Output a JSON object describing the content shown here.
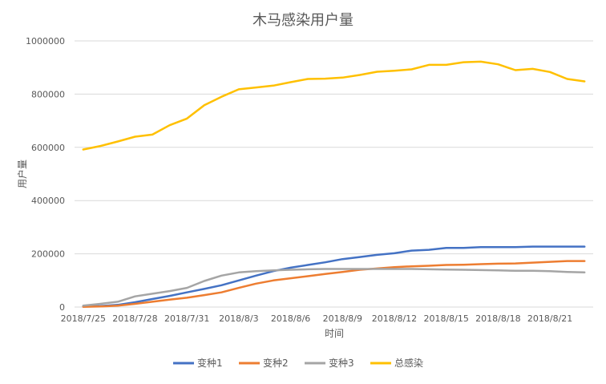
{
  "chart_data": {
    "type": "line",
    "title": "木马感染用户量",
    "xlabel": "时间",
    "ylabel": "用户量",
    "ylim": [
      0,
      1000000
    ],
    "yticks": [
      "0",
      "200000",
      "400000",
      "600000",
      "800000",
      "1000000"
    ],
    "y_tick_values": [
      0,
      200000,
      400000,
      600000,
      800000,
      1000000
    ],
    "x": [
      "2018/7/25",
      "2018/7/26",
      "2018/7/27",
      "2018/7/28",
      "2018/7/29",
      "2018/7/30",
      "2018/7/31",
      "2018/8/1",
      "2018/8/2",
      "2018/8/3",
      "2018/8/4",
      "2018/8/5",
      "2018/8/6",
      "2018/8/7",
      "2018/8/8",
      "2018/8/9",
      "2018/8/10",
      "2018/8/11",
      "2018/8/12",
      "2018/8/13",
      "2018/8/14",
      "2018/8/15",
      "2018/8/16",
      "2018/8/17",
      "2018/8/18",
      "2018/8/19",
      "2018/8/20",
      "2018/8/21",
      "2018/8/22",
      "2018/8/23"
    ],
    "xtick_labels": [
      "2018/7/25",
      "2018/7/28",
      "2018/7/31",
      "2018/8/3",
      "2018/8/6",
      "2018/8/9",
      "2018/8/12",
      "2018/8/15",
      "2018/8/18",
      "2018/8/21"
    ],
    "grid": true,
    "legend_position": "bottom",
    "series": [
      {
        "name": "变种1",
        "color": "#4472C4",
        "values": [
          2000,
          4000,
          8000,
          18000,
          30000,
          42000,
          55000,
          68000,
          82000,
          100000,
          118000,
          135000,
          148000,
          158000,
          168000,
          180000,
          188000,
          196000,
          202000,
          212000,
          215000,
          222000,
          222000,
          225000,
          225000,
          225000,
          227000,
          227000,
          227000,
          227000
        ]
      },
      {
        "name": "变种2",
        "color": "#ED7D31",
        "values": [
          1000,
          2000,
          5000,
          12000,
          20000,
          28000,
          35000,
          45000,
          55000,
          72000,
          88000,
          100000,
          108000,
          116000,
          124000,
          132000,
          140000,
          145000,
          150000,
          153000,
          155000,
          158000,
          159000,
          161000,
          163000,
          164000,
          167000,
          170000,
          173000,
          173000
        ]
      },
      {
        "name": "变种3",
        "color": "#A5A5A5",
        "values": [
          5000,
          12000,
          20000,
          40000,
          50000,
          60000,
          72000,
          98000,
          118000,
          130000,
          135000,
          138000,
          140000,
          142000,
          143000,
          143000,
          143000,
          143000,
          143000,
          143000,
          142000,
          141000,
          140000,
          139000,
          138000,
          136000,
          136000,
          135000,
          132000,
          130000
        ]
      },
      {
        "name": "总感染",
        "color": "#FFC000",
        "values": [
          592000,
          605000,
          622000,
          640000,
          648000,
          683000,
          708000,
          758000,
          790000,
          818000,
          825000,
          832000,
          845000,
          857000,
          858000,
          862000,
          872000,
          884000,
          888000,
          893000,
          910000,
          910000,
          920000,
          922000,
          912000,
          890000,
          895000,
          883000,
          857000,
          848000
        ]
      }
    ]
  }
}
